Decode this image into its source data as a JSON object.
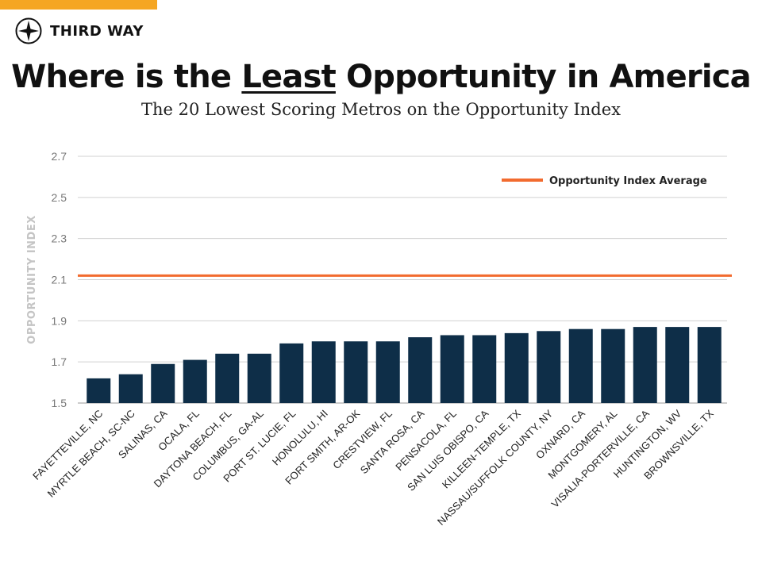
{
  "brand": {
    "name": "THIRD WAY",
    "icon": "compass-icon",
    "accent_color": "#f5a623"
  },
  "header": {
    "title_before": "Where is the ",
    "title_emphasis": "Least",
    "title_after": " Opportunity in America",
    "subtitle": "The 20 Lowest Scoring Metros on the Opportunity Index"
  },
  "chart_data": {
    "type": "bar",
    "title": "Where is the Least Opportunity in America",
    "subtitle": "The 20 Lowest Scoring Metros on the Opportunity Index",
    "xlabel": "",
    "ylabel": "OPPORTUNITY INDEX",
    "ylim": [
      1.5,
      2.7
    ],
    "yticks": [
      "1.5",
      "1.7",
      "1.9",
      "2.1",
      "2.3",
      "2.5",
      "2.7"
    ],
    "grid": true,
    "bar_color": "#0e2e48",
    "categories": [
      "FAYETTEVILLE, NC",
      "MYRTLE BEACH, SC-NC",
      "SALINAS, CA",
      "OCALA, FL",
      "DAYTONA BEACH, FL",
      "COLUMBUS, GA-AL",
      "PORT ST. LUCIE, FL",
      "HONOLULU, HI",
      "FORT SMITH, AR-OK",
      "CRESTVIEW, FL",
      "SANTA ROSA, CA",
      "PENSACOLA, FL",
      "SAN LUIS OBISPO, CA",
      "KILLEEN-TEMPLE, TX",
      "NASSAU/SUFFOLK COUNTY, NY",
      "OXNARD, CA",
      "MONTGOMERY, AL",
      "VISALIA-PORTERVILLE, CA",
      "HUNTINGTON, WV",
      "BROWNSVILLE, TX"
    ],
    "values": [
      1.62,
      1.64,
      1.69,
      1.71,
      1.74,
      1.74,
      1.79,
      1.8,
      1.8,
      1.8,
      1.82,
      1.83,
      1.83,
      1.84,
      1.85,
      1.86,
      1.86,
      1.87,
      1.87,
      1.87
    ],
    "reference_line": {
      "name": "Opportunity Index Average",
      "value": 2.12,
      "color": "#f26b2f"
    },
    "legend": {
      "position": "top-right",
      "entries": [
        "Opportunity Index Average"
      ]
    }
  }
}
